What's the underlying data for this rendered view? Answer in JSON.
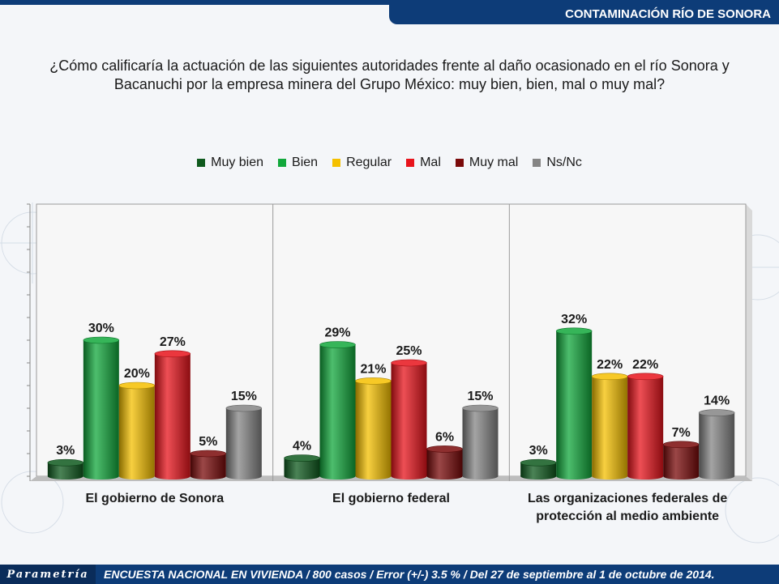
{
  "header": {
    "title": "CONTAMINACIÓN RÍO DE SONORA"
  },
  "question": {
    "line1": "¿Cómo calificaría la actuación de las siguientes autoridades frente al daño ocasionado en el río Sonora y",
    "line2": "Bacanuchi por la empresa minera del Grupo México: muy bien, bien, mal o muy mal?"
  },
  "footer": {
    "logo": "Parametría",
    "text": "ENCUESTA NACIONAL EN VIVIENDA / 800 casos / Error (+/-) 3.5 % / Del 27 de septiembre al 1 de octubre de 2014."
  },
  "chart_data": {
    "type": "bar",
    "categories": [
      [
        "El gobierno de Sonora"
      ],
      [
        "El gobierno federal"
      ],
      [
        "Las organizaciones federales de",
        "protección al medio ambiente"
      ]
    ],
    "series": [
      {
        "name": "Muy bien",
        "color": "#0f5a1e",
        "values": [
          3,
          4,
          3
        ]
      },
      {
        "name": "Bien",
        "color": "#12a83c",
        "values": [
          30,
          29,
          32
        ]
      },
      {
        "name": "Regular",
        "color": "#f5c000",
        "values": [
          20,
          21,
          22
        ]
      },
      {
        "name": "Mal",
        "color": "#e8141c",
        "values": [
          27,
          25,
          22
        ]
      },
      {
        "name": "Muy mal",
        "color": "#7a0a0a",
        "values": [
          5,
          6,
          7
        ]
      },
      {
        "name": "Ns/Nc",
        "color": "#858585",
        "values": [
          15,
          15,
          14
        ]
      }
    ],
    "value_suffix": "%",
    "ylim": [
      0,
      60
    ],
    "grid": false,
    "legend_position": "top-center"
  }
}
